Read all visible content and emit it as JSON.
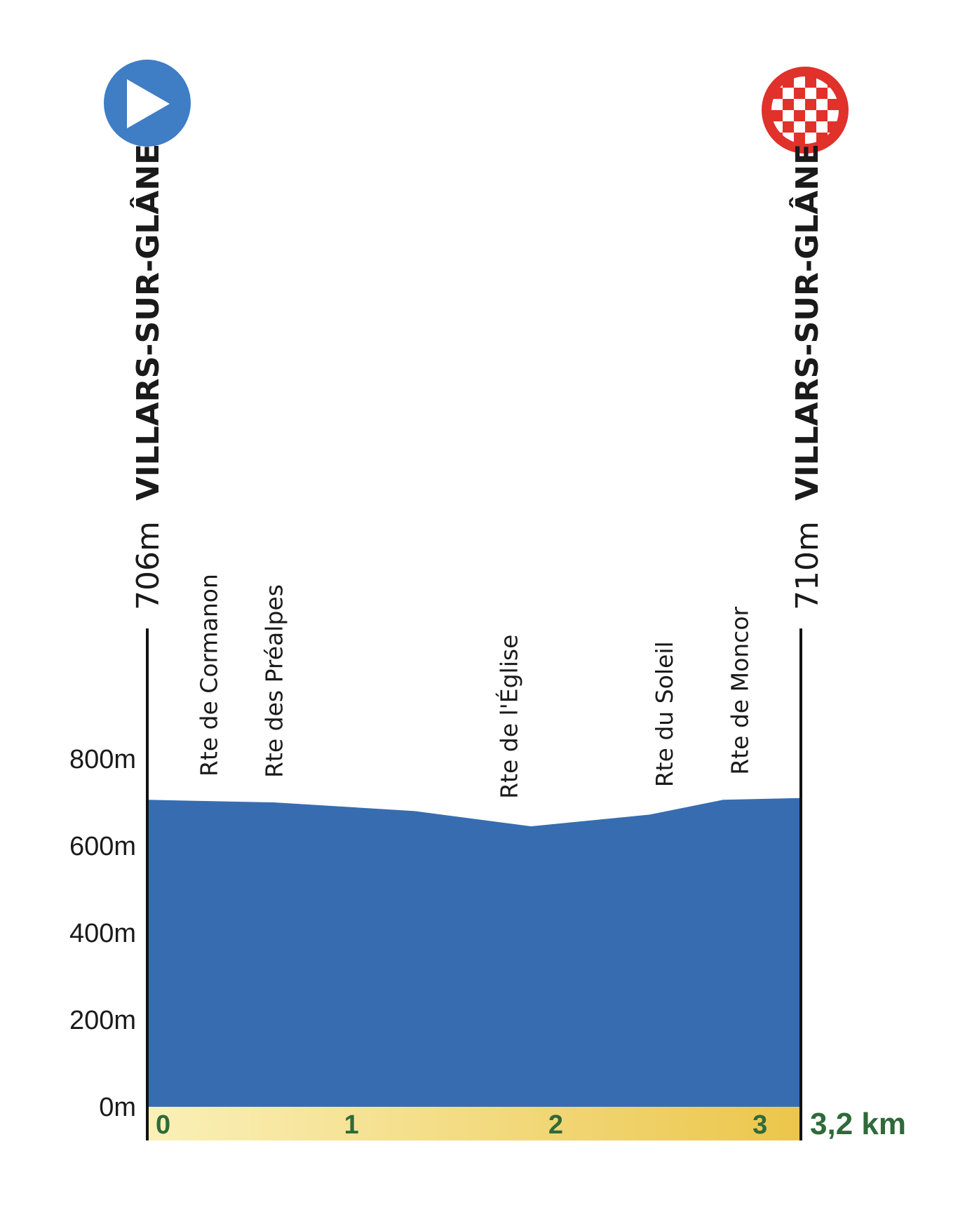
{
  "chart_data": {
    "type": "area",
    "title": "",
    "xlabel": "",
    "ylabel": "",
    "x_unit": "km",
    "y_unit": "m",
    "xlim": [
      0,
      3.2
    ],
    "ylim": [
      0,
      800
    ],
    "y_ticks": [
      "0m",
      "200m",
      "400m",
      "600m",
      "800m"
    ],
    "y_tick_values": [
      0,
      200,
      400,
      600,
      800
    ],
    "x_ticks": [
      "0",
      "1",
      "2",
      "3"
    ],
    "x_tick_values": [
      0,
      1,
      2,
      3
    ],
    "total_distance_label": "3,2 km",
    "profile": {
      "x": [
        0,
        0.62,
        1.31,
        1.88,
        2.46,
        2.82,
        3.2
      ],
      "y": [
        706,
        700,
        680,
        645,
        672,
        706,
        710
      ]
    },
    "waypoints": [
      {
        "label": "Rte de Cormanon",
        "x": 0.3
      },
      {
        "label": "Rte des Préalpes",
        "x": 0.62
      },
      {
        "label": "Rte de l'Église",
        "x": 1.77
      },
      {
        "label": "Rte du Soleil",
        "x": 2.53
      },
      {
        "label": "Rte de Moncor",
        "x": 2.9
      }
    ],
    "start": {
      "name": "VILLARS-SUR-GLÂNE",
      "elevation": "706m",
      "icon": "start-play-icon"
    },
    "finish": {
      "name": "VILLARS-SUR-GLÂNE",
      "elevation": "710m",
      "icon": "finish-checkered-flag-icon"
    },
    "grid": false,
    "colors": {
      "profile_fill": "#376db0",
      "start_icon": "#3f7dc5",
      "finish_icon": "#e0312b",
      "km_bar_start": "#faf0b8",
      "km_bar_end": "#ecc64b",
      "km_text": "#2f6a3a"
    }
  }
}
